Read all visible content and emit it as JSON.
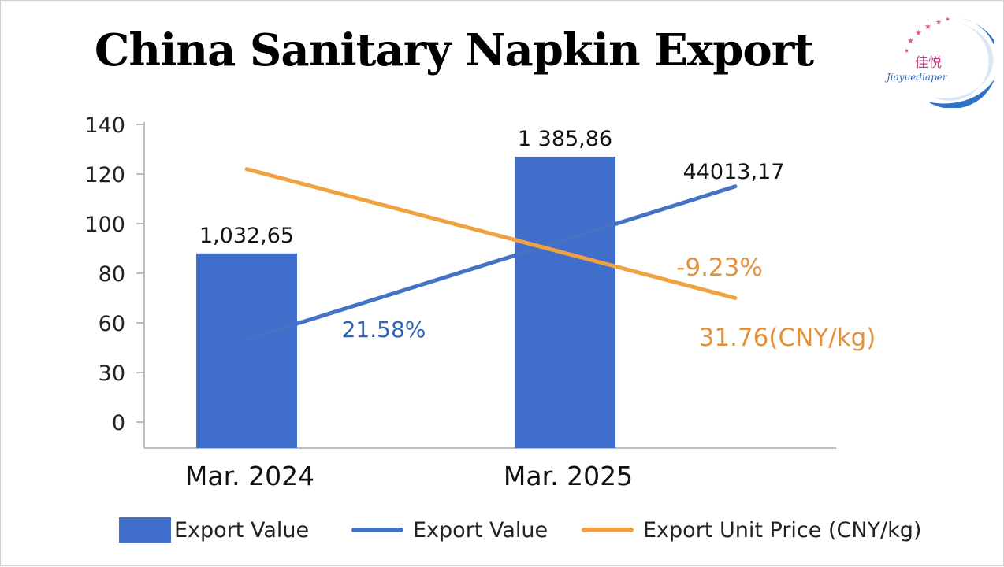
{
  "title": "China Sanitary Napkin Export",
  "logo": {
    "cn_text": "佳悦",
    "en_text": "Jiayuediaper"
  },
  "colors": {
    "bar": "#3f6ecb",
    "value_line": "#4472c4",
    "price_line": "#f0a242",
    "axis": "#bdbdbd",
    "value_annotation": "#2e64b7",
    "price_annotation": "#e3923a"
  },
  "chart_data": {
    "type": "bar",
    "categories": [
      "Mar. 2024",
      "Mar. 2025"
    ],
    "yticks": [
      "0",
      "30",
      "60",
      "80",
      "100",
      "120",
      "140"
    ],
    "bars": {
      "name": "Export Value",
      "values": [
        88,
        127
      ],
      "labels": [
        "1,032,65",
        "1 385,86"
      ]
    },
    "lines": [
      {
        "name": "Export Value",
        "values": [
          50,
          115
        ],
        "end_label": "44013,17",
        "change_label": "21.58%"
      },
      {
        "name": "Export Unit Price (CNY/kg)",
        "values": [
          122,
          70
        ],
        "end_label": "31.76(CNY/kg)",
        "change_label": "-9.23%"
      }
    ],
    "legend_position": "bottom",
    "grid": false
  }
}
